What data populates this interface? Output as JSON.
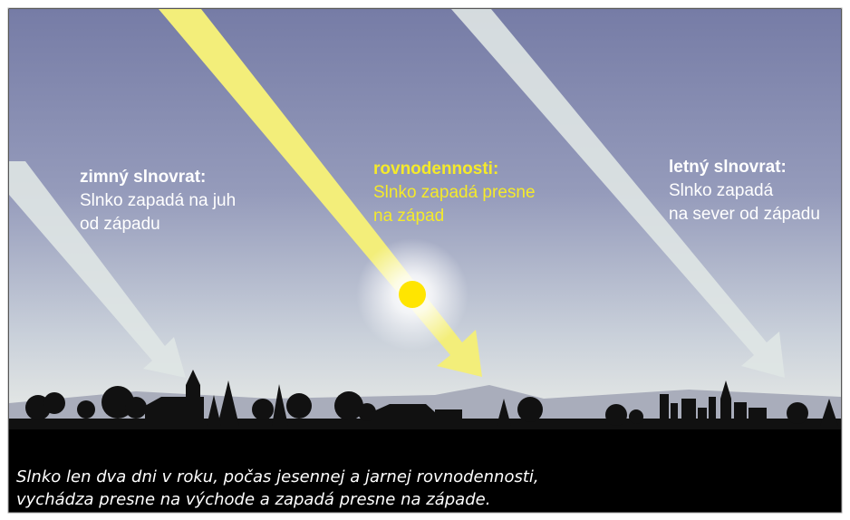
{
  "labels": [
    {
      "title": "zimný slnovrat:",
      "lines": [
        "Slnko zapadá na juh",
        "od západu"
      ]
    },
    {
      "title": "rovnodennosti:",
      "lines": [
        "Slnko zapadá presne",
        "na západ"
      ]
    },
    {
      "title": "letný slnovrat:",
      "lines": [
        "Slnko zapadá",
        "na sever od západu"
      ]
    }
  ],
  "caption": [
    "Slnko len dva dni v roku, počas jesennej a jarnej rovnodennosti,",
    "vychádza presne na východe a zapadá presne na západe."
  ]
}
